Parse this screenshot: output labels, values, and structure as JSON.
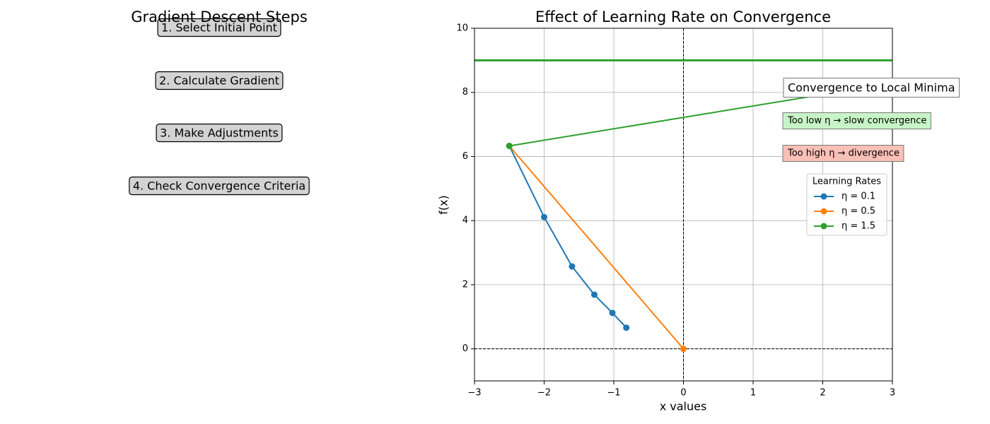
{
  "steps_panel": {
    "title": "Gradient Descent Steps",
    "steps": [
      "1. Select Initial Point",
      "2. Calculate Gradient",
      "3. Make Adjustments",
      "4. Check Convergence Criteria"
    ]
  },
  "chart_data": {
    "type": "line",
    "title": "Effect of Learning Rate on Convergence",
    "x_label": "x values",
    "y_label": "f(x)",
    "xlim": [
      -3,
      3
    ],
    "ylim": [
      -1,
      10
    ],
    "xticks": [
      {
        "value": -3,
        "label": "−3"
      },
      {
        "value": -2,
        "label": "−2"
      },
      {
        "value": -1,
        "label": "−1"
      },
      0,
      1,
      2,
      3
    ],
    "yticks": [
      0,
      2,
      4,
      6,
      8,
      10
    ],
    "grid": true,
    "reference_lines": {
      "x": 0,
      "y": 0
    },
    "horizontal_line": {
      "y": 9,
      "color": "#2ca02c"
    },
    "series": [
      {
        "name": "η = 0.1",
        "color": "#1f77b4",
        "x": [
          -2.5,
          -2.0,
          -1.6,
          -1.28,
          -1.02,
          -0.82
        ],
        "values": [
          6.33,
          4.11,
          2.57,
          1.69,
          1.12,
          0.66
        ]
      },
      {
        "name": "η = 0.5",
        "color": "#ff7f0e",
        "x": [
          -2.5,
          0
        ],
        "values": [
          6.33,
          0
        ]
      },
      {
        "name": "η = 1.5",
        "color": "#2ca02c",
        "x": [
          -2.5,
          5
        ],
        "values": [
          6.33,
          9.0
        ]
      }
    ],
    "legend": {
      "title": "Learning Rates",
      "position": "right"
    },
    "annotations": [
      {
        "text": "Convergence to Local Minima",
        "color": "#ffffff"
      },
      {
        "text": "Too low η → slow convergence",
        "color": "#c8f5c8"
      },
      {
        "text": "Too high η → divergence",
        "color": "#f9c0b8"
      }
    ]
  }
}
